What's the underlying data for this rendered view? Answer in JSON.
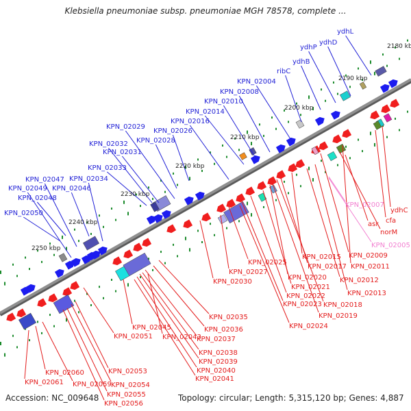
{
  "title": "Klebsiella pneumoniae subsp. pneumoniae MGH 78578, complete ...",
  "footer": {
    "accession": "Accession: NC_009648",
    "summary": "Topology: circular; Length: 5,315,120 bp; Genes: 4,887"
  },
  "colors": {
    "forward_label": "#1f1fd6",
    "forward_feature": "#1c1cf0",
    "reverse_label": "#e31a1a",
    "reverse_feature": "#f01e1e",
    "pseudo_label": "#f27fd0",
    "backbone": "#8f8f8f",
    "tick": "#1a8a2a",
    "coordinate_text": "#222222"
  },
  "coordinate_labels": [
    "2180 kbp",
    "2190 kbp",
    "2200 kbp",
    "2210 kbp",
    "2220 kbp",
    "2230 kbp",
    "2240 kbp",
    "2250 kbp"
  ],
  "forward_genes": [
    "ydhL",
    "ydhD",
    "ydhP",
    "ydhB",
    "ribC",
    "KPN_02004",
    "KPN_02008",
    "KPN_02010",
    "KPN_02014",
    "KPN_02016",
    "KPN_02029",
    "KPN_02026",
    "KPN_02032",
    "KPN_02028",
    "KPN_02031",
    "KPN_02033",
    "KPN_02034",
    "KPN_02047",
    "KPN_02049",
    "KPN_02046",
    "KPN_02048",
    "KPN_02050"
  ],
  "reverse_genes": [
    "KPN_02007",
    "ydhC",
    "cfa",
    "asr",
    "norM",
    "KPN_02005",
    "KPN_02009",
    "KPN_02011",
    "KPN_02015",
    "KPN_02017",
    "KPN_02012",
    "KPN_02025",
    "KPN_02027",
    "KPN_02020",
    "KPN_02021",
    "KPN_02022",
    "KPN_02013",
    "KPN_02023",
    "KPN_02018",
    "KPN_02019",
    "KPN_02024",
    "KPN_02030",
    "KPN_02035",
    "KPN_02036",
    "KPN_02037",
    "KPN_02038",
    "KPN_02039",
    "KPN_02040",
    "KPN_02041",
    "KPN_02045",
    "KPN_02043",
    "KPN_02051",
    "KPN_02053",
    "KPN_02054",
    "KPN_02055",
    "KPN_02056",
    "KPN_02059",
    "KPN_02060",
    "KPN_02061"
  ]
}
